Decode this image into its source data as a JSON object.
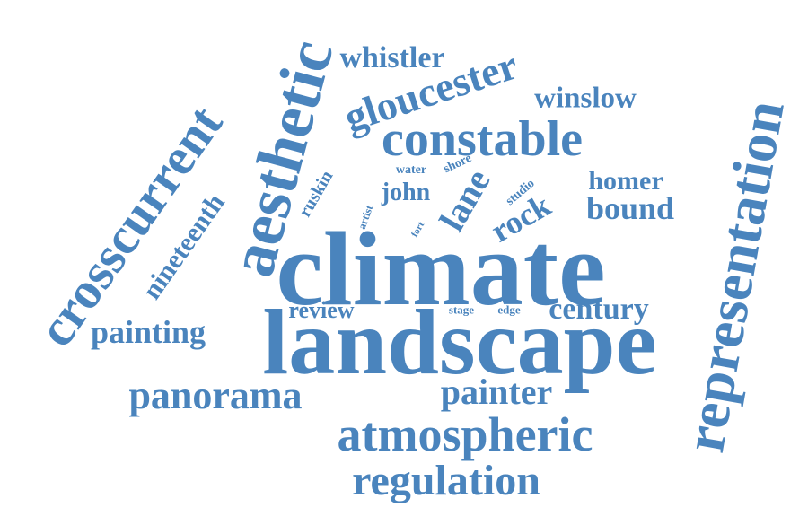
{
  "colors": {
    "word": "#4a84bd",
    "background": "#ffffff"
  },
  "words": [
    "climate",
    "landscape",
    "representation",
    "crosscurrent",
    "aesthetic",
    "constable",
    "atmospheric",
    "gloucester",
    "regulation",
    "panorama",
    "painter",
    "century",
    "painting",
    "whistler",
    "winslow",
    "nineteenth",
    "review",
    "bound",
    "homer",
    "rock",
    "lane",
    "john",
    "ruskin",
    "studio",
    "shore",
    "water",
    "artist",
    "fort",
    "stage",
    "edge"
  ]
}
